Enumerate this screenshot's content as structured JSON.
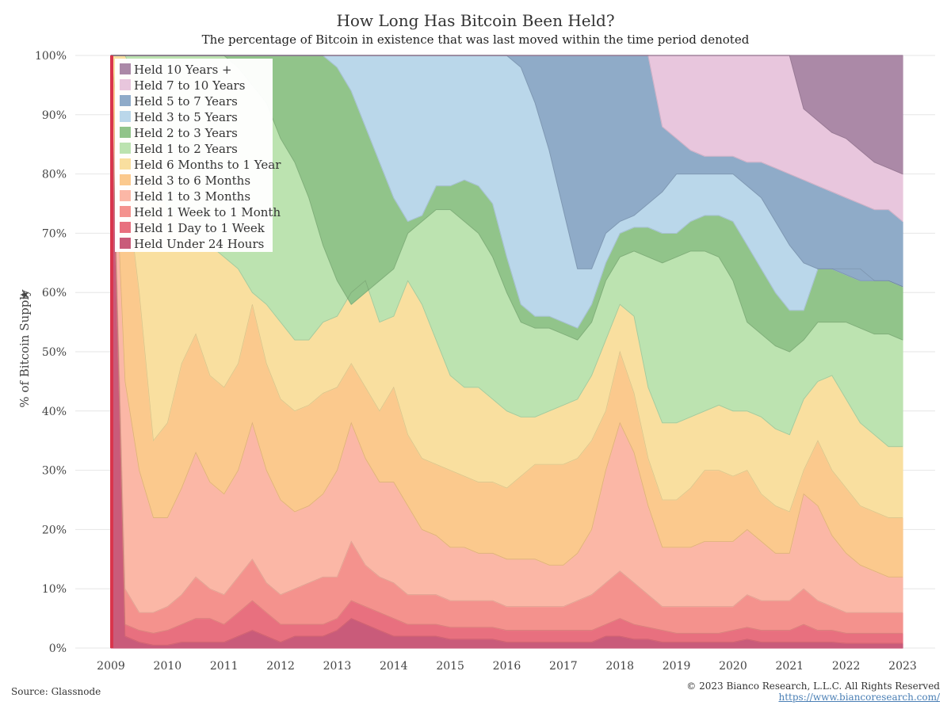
{
  "header": {
    "title": "How Long Has Bitcoin Been Held?",
    "subtitle": "The percentage of Bitcoin in existence that was last moved within the time period denoted"
  },
  "footer": {
    "source": "Source: Glassnode",
    "copyright": "© 2023 Bianco Research, L.L.C. All Rights Reserved",
    "website": "https://www.biancoresearch.com/"
  },
  "chart_data": {
    "type": "area",
    "stacked": true,
    "title": "How Long Has Bitcoin Been Held?",
    "subtitle": "The percentage of Bitcoin in existence that was last moved within the time period denoted",
    "xlabel": "",
    "ylabel": "% of Bitcoin Supply",
    "xlim": [
      2009,
      2023
    ],
    "ylim": [
      0,
      100
    ],
    "x_ticks": [
      "2009",
      "2010",
      "2011",
      "2012",
      "2013",
      "2014",
      "2015",
      "2016",
      "2017",
      "2018",
      "2019",
      "2020",
      "2021",
      "2022",
      "2023"
    ],
    "y_ticks": [
      "0%",
      "10%",
      "20%",
      "30%",
      "40%",
      "50%",
      "60%",
      "70%",
      "80%",
      "90%",
      "100%"
    ],
    "grid": true,
    "legend_position": "top-left",
    "x": [
      2009.0,
      2009.25,
      2009.5,
      2009.75,
      2010.0,
      2010.25,
      2010.5,
      2010.75,
      2011.0,
      2011.25,
      2011.5,
      2011.75,
      2012.0,
      2012.25,
      2012.5,
      2012.75,
      2013.0,
      2013.25,
      2013.5,
      2013.75,
      2014.0,
      2014.25,
      2014.5,
      2014.75,
      2015.0,
      2015.25,
      2015.5,
      2015.75,
      2016.0,
      2016.25,
      2016.5,
      2016.75,
      2017.0,
      2017.25,
      2017.5,
      2017.75,
      2018.0,
      2018.25,
      2018.5,
      2018.75,
      2019.0,
      2019.25,
      2019.5,
      2019.75,
      2020.0,
      2020.25,
      2020.5,
      2020.75,
      2021.0,
      2021.25,
      2021.5,
      2021.75,
      2022.0,
      2022.25,
      2022.5,
      2022.75,
      2023.0
    ],
    "series_order": "bottom-to-top",
    "series": [
      {
        "name": "Held Under 24 Hours",
        "color": "#c95b7a",
        "cumulative_top": [
          100,
          2,
          1,
          0.5,
          0.5,
          1,
          1,
          1,
          1,
          2,
          3,
          2,
          1,
          2,
          2,
          2,
          3,
          5,
          4,
          3,
          2,
          2,
          2,
          2,
          1.5,
          1.5,
          1.5,
          1.5,
          1,
          1,
          1,
          1,
          1,
          1,
          1,
          2,
          2,
          1.5,
          1.5,
          1,
          1,
          1,
          1,
          1,
          1,
          1.5,
          1,
          1,
          1,
          1,
          1,
          1,
          0.8,
          0.8,
          0.8,
          0.8,
          0.8
        ]
      },
      {
        "name": "Held 1 Day to 1 Week",
        "color": "#e8707f",
        "cumulative_top": [
          100,
          4,
          3,
          2.5,
          3,
          4,
          5,
          5,
          4,
          6,
          8,
          6,
          4,
          4,
          4,
          4,
          5,
          8,
          7,
          6,
          5,
          4,
          4,
          4,
          3.5,
          3.5,
          3.5,
          3.5,
          3,
          3,
          3,
          3,
          3,
          3,
          3,
          4,
          5,
          4,
          3.5,
          3,
          2.5,
          2.5,
          2.5,
          2.5,
          3,
          3.5,
          3,
          3,
          3,
          4,
          3,
          3,
          2.5,
          2.5,
          2.5,
          2.5,
          2.5
        ]
      },
      {
        "name": "Held 1 Week to 1 Month",
        "color": "#f4928d",
        "cumulative_top": [
          100,
          10,
          6,
          6,
          7,
          9,
          12,
          10,
          9,
          12,
          15,
          11,
          9,
          10,
          11,
          12,
          12,
          18,
          14,
          12,
          11,
          9,
          9,
          9,
          8,
          8,
          8,
          8,
          7,
          7,
          7,
          7,
          7,
          8,
          9,
          11,
          13,
          11,
          9,
          7,
          7,
          7,
          7,
          7,
          7,
          9,
          8,
          8,
          8,
          10,
          8,
          7,
          6,
          6,
          6,
          6,
          6
        ]
      },
      {
        "name": "Held 1 to 3 Months",
        "color": "#fbb7a6",
        "cumulative_top": [
          100,
          45,
          30,
          22,
          22,
          27,
          33,
          28,
          26,
          30,
          38,
          30,
          25,
          23,
          24,
          26,
          30,
          38,
          32,
          28,
          28,
          24,
          20,
          19,
          17,
          17,
          16,
          16,
          15,
          15,
          15,
          14,
          14,
          16,
          20,
          30,
          38,
          33,
          24,
          17,
          17,
          17,
          18,
          18,
          18,
          20,
          18,
          16,
          16,
          26,
          24,
          19,
          16,
          14,
          13,
          12,
          12
        ]
      },
      {
        "name": "Held 3 to 6 Months",
        "color": "#fbc98d",
        "cumulative_top": [
          100,
          80,
          60,
          35,
          38,
          48,
          53,
          46,
          44,
          48,
          58,
          48,
          42,
          40,
          41,
          43,
          44,
          48,
          44,
          40,
          44,
          36,
          32,
          31,
          30,
          29,
          28,
          28,
          27,
          29,
          31,
          31,
          31,
          32,
          35,
          40,
          50,
          43,
          32,
          25,
          25,
          27,
          30,
          30,
          29,
          30,
          26,
          24,
          23,
          30,
          35,
          30,
          27,
          24,
          23,
          22,
          22
        ]
      },
      {
        "name": "Held 6 Months to 1 Year",
        "color": "#f9df9f",
        "cumulative_top": [
          100,
          100,
          95,
          85,
          74,
          72,
          70,
          68,
          66,
          64,
          60,
          58,
          55,
          52,
          52,
          55,
          56,
          60,
          62,
          55,
          56,
          62,
          58,
          52,
          46,
          44,
          44,
          42,
          40,
          39,
          39,
          40,
          41,
          42,
          46,
          52,
          58,
          56,
          44,
          38,
          38,
          39,
          40,
          41,
          40,
          40,
          39,
          37,
          36,
          42,
          45,
          46,
          42,
          38,
          36,
          34,
          34
        ]
      },
      {
        "name": "Held 1 to 2 Years",
        "color": "#bce3b0",
        "cumulative_top": [
          100,
          100,
          100,
          100,
          100,
          100,
          100,
          100,
          100,
          98,
          95,
          92,
          86,
          82,
          76,
          68,
          62,
          58,
          60,
          62,
          64,
          70,
          72,
          74,
          74,
          72,
          70,
          66,
          60,
          55,
          54,
          54,
          53,
          52,
          55,
          62,
          66,
          67,
          66,
          65,
          66,
          67,
          67,
          66,
          62,
          55,
          53,
          51,
          50,
          52,
          55,
          55,
          55,
          54,
          53,
          53,
          52
        ]
      },
      {
        "name": "Held 2 to 3 Years",
        "color": "#91c48a",
        "cumulative_top": [
          100,
          100,
          100,
          100,
          100,
          100,
          100,
          100,
          100,
          100,
          100,
          100,
          100,
          100,
          100,
          100,
          98,
          94,
          88,
          82,
          76,
          72,
          73,
          78,
          78,
          79,
          78,
          75,
          66,
          58,
          56,
          56,
          55,
          54,
          58,
          65,
          70,
          71,
          71,
          70,
          70,
          72,
          73,
          73,
          72,
          68,
          64,
          60,
          57,
          57,
          64,
          64,
          64,
          64,
          62,
          62,
          61
        ]
      },
      {
        "name": "Held 3 to 5 Years",
        "color": "#bad7ea",
        "cumulative_top": [
          100,
          100,
          100,
          100,
          100,
          100,
          100,
          100,
          100,
          100,
          100,
          100,
          100,
          100,
          100,
          100,
          100,
          100,
          100,
          100,
          100,
          100,
          100,
          100,
          100,
          100,
          100,
          100,
          100,
          98,
          92,
          84,
          74,
          64,
          64,
          70,
          72,
          73,
          75,
          77,
          80,
          80,
          80,
          80,
          80,
          78,
          76,
          72,
          68,
          65,
          64,
          64,
          63,
          62,
          62,
          62,
          61
        ]
      },
      {
        "name": "Held 5 to 7 Years",
        "color": "#8fabc8",
        "cumulative_top": [
          100,
          100,
          100,
          100,
          100,
          100,
          100,
          100,
          100,
          100,
          100,
          100,
          100,
          100,
          100,
          100,
          100,
          100,
          100,
          100,
          100,
          100,
          100,
          100,
          100,
          100,
          100,
          100,
          100,
          100,
          100,
          100,
          100,
          100,
          100,
          100,
          100,
          100,
          100,
          88,
          86,
          84,
          83,
          83,
          83,
          82,
          82,
          81,
          80,
          79,
          78,
          77,
          76,
          75,
          74,
          74,
          72
        ]
      },
      {
        "name": "Held 7 to 10 Years",
        "color": "#e8c6dd",
        "cumulative_top": [
          100,
          100,
          100,
          100,
          100,
          100,
          100,
          100,
          100,
          100,
          100,
          100,
          100,
          100,
          100,
          100,
          100,
          100,
          100,
          100,
          100,
          100,
          100,
          100,
          100,
          100,
          100,
          100,
          100,
          100,
          100,
          100,
          100,
          100,
          100,
          100,
          100,
          100,
          100,
          100,
          100,
          100,
          100,
          100,
          100,
          100,
          100,
          100,
          100,
          91,
          89,
          87,
          86,
          84,
          82,
          81,
          80
        ]
      },
      {
        "name": "Held 10 Years +",
        "color": "#ab89a7",
        "cumulative_top": [
          100,
          100,
          100,
          100,
          100,
          100,
          100,
          100,
          100,
          100,
          100,
          100,
          100,
          100,
          100,
          100,
          100,
          100,
          100,
          100,
          100,
          100,
          100,
          100,
          100,
          100,
          100,
          100,
          100,
          100,
          100,
          100,
          100,
          100,
          100,
          100,
          100,
          100,
          100,
          100,
          100,
          100,
          100,
          100,
          100,
          100,
          100,
          100,
          100,
          100,
          100,
          100,
          100,
          100,
          100,
          100,
          100
        ]
      }
    ]
  }
}
